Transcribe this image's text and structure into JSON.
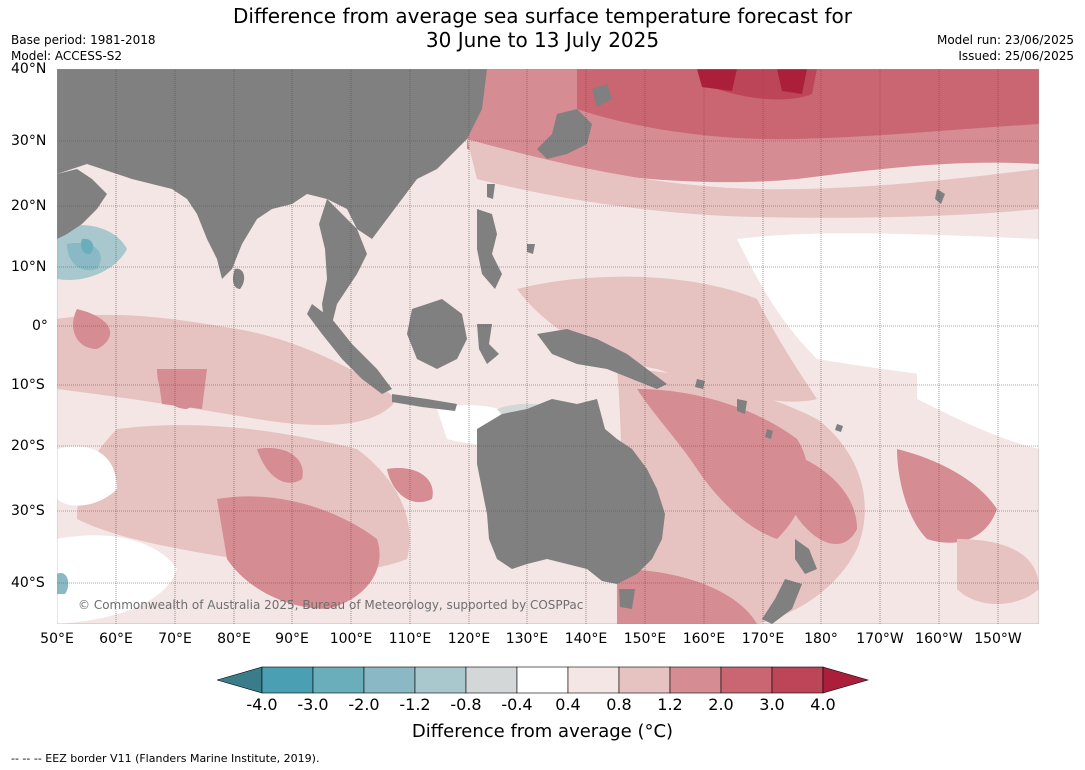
{
  "title_line1": "Difference from average sea surface temperature forecast for",
  "title_line2": "30 June to 13 July 2025",
  "base_period": "Base period: 1981-2018",
  "model": "Model: ACCESS-S2",
  "model_run": "Model run: 23/06/2025",
  "issued": "Issued: 25/06/2025",
  "lat_labels": [
    "40°N",
    "30°N",
    "20°N",
    "10°N",
    "0°",
    "10°S",
    "20°S",
    "30°S",
    "40°S"
  ],
  "lon_labels": [
    "50°E",
    "60°E",
    "70°E",
    "80°E",
    "90°E",
    "100°E",
    "110°E",
    "120°E",
    "130°E",
    "140°E",
    "150°E",
    "160°E",
    "170°E",
    "180°",
    "170°W",
    "160°W",
    "150°W"
  ],
  "copyright": "© Commonwealth of Australia 2025, Bureau of Meteorology, supported by COSPPac",
  "colorbar": {
    "labels": [
      "-4.0",
      "-3.0",
      "-2.0",
      "-1.2",
      "-0.8",
      "-0.4",
      "0.4",
      "0.8",
      "1.2",
      "2.0",
      "3.0",
      "4.0"
    ],
    "colors": [
      "#3a7d8a",
      "#4aa0b2",
      "#6aaebb",
      "#8ab8c4",
      "#a9c8cd",
      "#d3d7d8",
      "#ffffff",
      "#f3e6e5",
      "#e6c2c0",
      "#d58c93",
      "#c96671",
      "#bd4558",
      "#ab1f3a"
    ],
    "title": "Difference from average (°C)"
  },
  "footnote": "-- -- -- EEZ border V11 (Flanders Marine Institute, 2019).",
  "colors": {
    "land": "#808080",
    "ocean_base": "#f3e6e5",
    "grid": "#555555"
  }
}
